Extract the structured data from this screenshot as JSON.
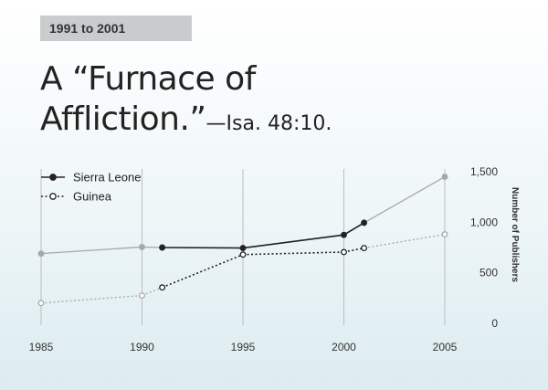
{
  "header": {
    "tag": "1991 to 2001",
    "title_line1": "A “Furnace of",
    "title_line2": "Affliction.”",
    "citation": "—Isa. 48:10."
  },
  "chart_data": {
    "type": "line",
    "x_ticks": [
      "1985",
      "1990",
      "1995",
      "2000",
      "2005"
    ],
    "y_ticks": [
      "0",
      "500",
      "1,000",
      "1,500"
    ],
    "ylabel": "Number of Publishers",
    "xlim": [
      1985,
      2005
    ],
    "ylim": [
      0,
      1500
    ],
    "highlight_range": [
      1991,
      2001
    ],
    "legend_position": "top-left",
    "series": [
      {
        "name": "Sierra Leone",
        "style": "solid",
        "marker": "filled-circle",
        "color": "#222222",
        "faded_color": "#a8a8a8",
        "points": [
          [
            1985,
            690
          ],
          [
            1990,
            755
          ],
          [
            1991,
            750
          ],
          [
            1995,
            745
          ],
          [
            2000,
            875
          ],
          [
            2001,
            995
          ],
          [
            2005,
            1450
          ]
        ]
      },
      {
        "name": "Guinea",
        "style": "dotted",
        "marker": "open-circle",
        "color": "#222222",
        "faded_color": "#a8a8a8",
        "points": [
          [
            1985,
            200
          ],
          [
            1990,
            275
          ],
          [
            1991,
            355
          ],
          [
            1995,
            680
          ],
          [
            2000,
            705
          ],
          [
            2001,
            745
          ],
          [
            2005,
            880
          ]
        ]
      }
    ]
  }
}
